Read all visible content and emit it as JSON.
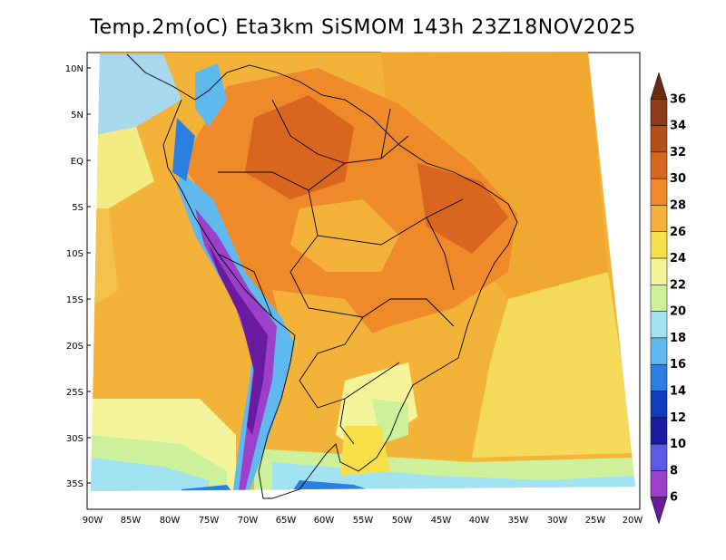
{
  "title": "Temp.2m(oC) Eta3km SiSMOM 143h 23Z18NOV2025",
  "y_ticks": [
    "10N",
    "5N",
    "EQ",
    "5S",
    "10S",
    "15S",
    "20S",
    "25S",
    "30S",
    "35S"
  ],
  "x_ticks": [
    "90W",
    "85W",
    "80W",
    "75W",
    "70W",
    "65W",
    "60W",
    "55W",
    "50W",
    "45W",
    "40W",
    "35W",
    "30W",
    "25W",
    "20W"
  ],
  "colorbar": {
    "labels": [
      "36",
      "34",
      "32",
      "30",
      "28",
      "26",
      "24",
      "22",
      "20",
      "18",
      "16",
      "14",
      "12",
      "10",
      "8",
      "6"
    ],
    "colors": [
      "#6b2a12",
      "#8e3b17",
      "#b5501b",
      "#d8661e",
      "#ee8a2a",
      "#f5b23a",
      "#f7e04a",
      "#f4f59a",
      "#ccf19a",
      "#a0e2f2",
      "#5fb8ee",
      "#2b7fe3",
      "#0c3ebd",
      "#1b1ba3",
      "#5c5be6",
      "#9a40c9",
      "#6a1a9e"
    ]
  }
}
